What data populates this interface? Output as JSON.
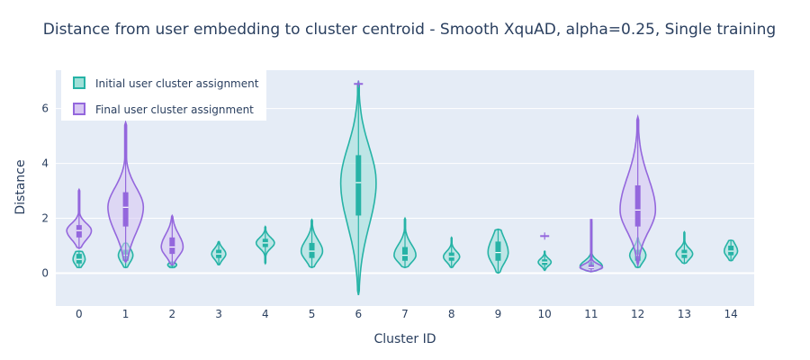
{
  "chart_data": {
    "type": "violin",
    "title": "Distance from user embedding to cluster centroid - Smooth XquAD, alpha=0.25, Single training",
    "xlabel": "Cluster ID",
    "ylabel": "Distance",
    "ylim": [
      -1.2,
      7.4
    ],
    "yticks": [
      0,
      2,
      4,
      6
    ],
    "categories": [
      "0",
      "1",
      "2",
      "3",
      "4",
      "5",
      "6",
      "7",
      "8",
      "9",
      "10",
      "11",
      "12",
      "13",
      "14"
    ],
    "legend": {
      "position": "top-left"
    },
    "series": [
      {
        "name": "Initial user cluster assignment",
        "color": "#26b3a6",
        "fill": "#9fe0d8",
        "violins": [
          {
            "cat": "0",
            "min": 0.2,
            "q1": 0.35,
            "median": 0.5,
            "q3": 0.7,
            "max": 0.8
          },
          {
            "cat": "1",
            "min": 0.2,
            "q1": 0.45,
            "median": 0.65,
            "q3": 0.85,
            "max": 1.1
          },
          {
            "cat": "2",
            "min": 0.2,
            "q1": 0.25,
            "median": 0.3,
            "q3": 0.35,
            "max": 0.4
          },
          {
            "cat": "3",
            "min": 0.3,
            "q1": 0.55,
            "median": 0.7,
            "q3": 0.85,
            "max": 1.15
          },
          {
            "cat": "4",
            "min": 0.35,
            "q1": 0.95,
            "median": 1.1,
            "q3": 1.25,
            "max": 1.7
          },
          {
            "cat": "5",
            "min": 0.2,
            "q1": 0.55,
            "median": 0.8,
            "q3": 1.1,
            "max": 1.95
          },
          {
            "cat": "6",
            "min": -0.8,
            "q1": 2.1,
            "median": 3.3,
            "q3": 4.3,
            "max": 7.0
          },
          {
            "cat": "7",
            "min": 0.2,
            "q1": 0.45,
            "median": 0.65,
            "q3": 0.95,
            "max": 2.0
          },
          {
            "cat": "8",
            "min": 0.2,
            "q1": 0.45,
            "median": 0.6,
            "q3": 0.75,
            "max": 1.3
          },
          {
            "cat": "9",
            "min": 0.0,
            "q1": 0.45,
            "median": 0.75,
            "q3": 1.15,
            "max": 1.6
          },
          {
            "cat": "10",
            "min": 0.1,
            "q1": 0.3,
            "median": 0.4,
            "q3": 0.5,
            "max": 0.8
          },
          {
            "cat": "11",
            "min": 0.05,
            "q1": 0.15,
            "median": 0.25,
            "q3": 0.4,
            "max": 1.9
          },
          {
            "cat": "12",
            "min": 0.2,
            "q1": 0.45,
            "median": 0.65,
            "q3": 0.85,
            "max": 1.3
          },
          {
            "cat": "13",
            "min": 0.35,
            "q1": 0.55,
            "median": 0.7,
            "q3": 0.85,
            "max": 1.5
          },
          {
            "cat": "14",
            "min": 0.45,
            "q1": 0.65,
            "median": 0.8,
            "q3": 1.0,
            "max": 1.2
          }
        ]
      },
      {
        "name": "Final user cluster assignment",
        "color": "#9467dd",
        "fill": "#d7c7f3",
        "violins": [
          {
            "cat": "0",
            "min": 0.9,
            "q1": 1.3,
            "median": 1.55,
            "q3": 1.75,
            "max": 3.05
          },
          {
            "cat": "1",
            "min": 0.4,
            "q1": 1.7,
            "median": 2.4,
            "q3": 2.95,
            "max": 5.5
          },
          {
            "cat": "2",
            "min": 0.3,
            "q1": 0.7,
            "median": 0.95,
            "q3": 1.3,
            "max": 2.1
          },
          {
            "cat": "6",
            "min": 6.9,
            "q1": 6.9,
            "median": 6.9,
            "q3": 6.9,
            "max": 6.9
          },
          {
            "cat": "10",
            "min": 1.35,
            "q1": 1.35,
            "median": 1.35,
            "q3": 1.35,
            "max": 1.35
          },
          {
            "cat": "11",
            "min": 0.05,
            "q1": 0.15,
            "median": 0.2,
            "q3": 0.3,
            "max": 1.95
          },
          {
            "cat": "12",
            "min": 0.3,
            "q1": 1.7,
            "median": 2.3,
            "q3": 3.2,
            "max": 5.7
          }
        ]
      }
    ]
  }
}
